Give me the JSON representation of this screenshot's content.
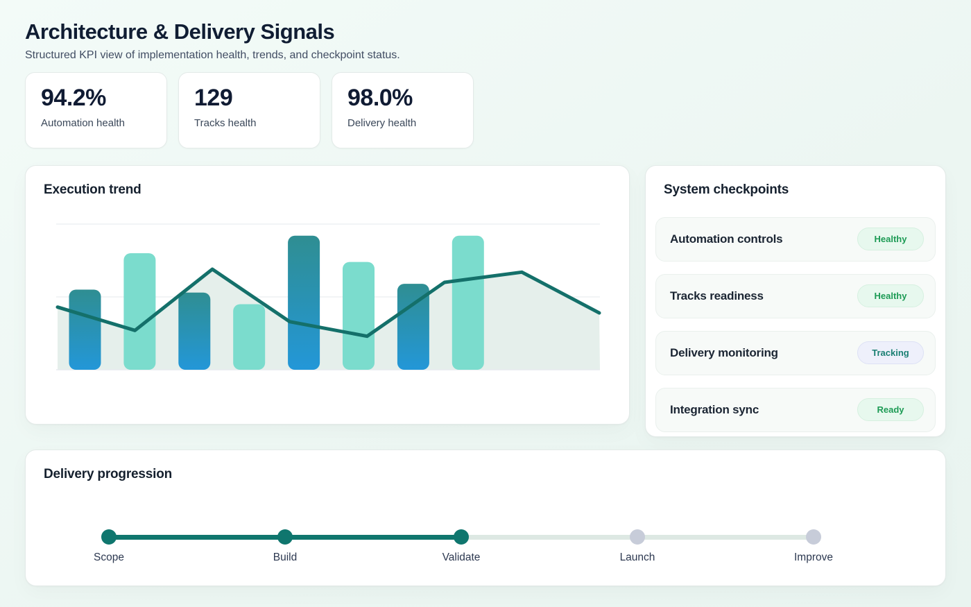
{
  "header": {
    "title": "Architecture & Delivery Signals",
    "subtitle": "Structured KPI view of implementation health, trends, and checkpoint status."
  },
  "kpis": [
    {
      "value": "94.2%",
      "label": "Automation health"
    },
    {
      "value": "129",
      "label": "Tracks health"
    },
    {
      "value": "98.0%",
      "label": "Delivery health"
    }
  ],
  "chart_data": {
    "type": "bar",
    "title": "Execution trend",
    "xlabel": "",
    "ylabel": "",
    "x_tick_labels": [],
    "ylim": [
      0,
      100
    ],
    "gridline_values": [
      50,
      100
    ],
    "grid": true,
    "legend": false,
    "series": [
      {
        "name": "execution-bars",
        "type": "bar",
        "values": [
          55,
          80,
          53,
          45,
          92,
          74,
          59,
          92
        ]
      },
      {
        "name": "trend-area",
        "type": "area",
        "values": [
          43,
          27,
          69,
          33,
          23,
          60,
          67,
          39
        ]
      },
      {
        "name": "trend-line",
        "type": "line",
        "values": [
          43,
          27,
          69,
          33,
          23,
          60,
          67,
          39
        ]
      }
    ]
  },
  "checkpoints": {
    "title": "System checkpoints",
    "items": [
      {
        "label": "Automation controls",
        "badge": {
          "text": "Healthy",
          "variant": "green"
        }
      },
      {
        "label": "Tracks readiness",
        "badge": {
          "text": "Healthy",
          "variant": "green"
        }
      },
      {
        "label": "Delivery monitoring",
        "badge": {
          "text": "Tracking",
          "variant": "blue"
        }
      },
      {
        "label": "Integration sync",
        "badge": {
          "text": "Ready",
          "variant": "green"
        }
      }
    ]
  },
  "progression": {
    "title": "Delivery progression",
    "steps": [
      {
        "label": "Scope",
        "state": "done"
      },
      {
        "label": "Build",
        "state": "done"
      },
      {
        "label": "Validate",
        "state": "done"
      },
      {
        "label": "Launch",
        "state": "todo"
      },
      {
        "label": "Improve",
        "state": "todo"
      }
    ]
  },
  "colors": {
    "accent_teal": "#0f766e",
    "chart": {
      "bar_gradient_top": "#2f8e92",
      "bar_gradient_bottom": "#2397d8",
      "bar_alt": "#7bdccd",
      "line": "#14706a",
      "area_fill": "#e5efeb",
      "gridline": "#edf1f4",
      "baseline": "#e7ecef"
    },
    "badges": {
      "green": {
        "bg": "#e7f8ee",
        "border": "#d6f0e0",
        "text": "#1d9b55"
      },
      "blue": {
        "bg": "#eef0fb",
        "border": "#dde1f5",
        "text": "#197f72"
      }
    },
    "stepper": {
      "done_dot": "#0f766e",
      "todo_dot": "#c7ccd9",
      "done_track": "#0f766e",
      "todo_track": "#dde8e3"
    }
  }
}
